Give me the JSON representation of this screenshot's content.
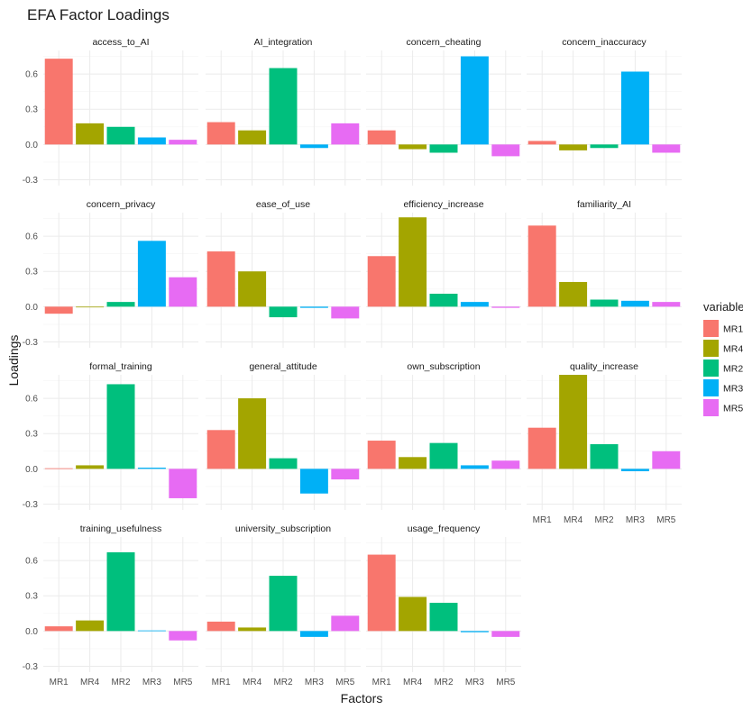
{
  "chart_data": {
    "type": "bar",
    "title": "EFA Factor Loadings",
    "xlabel": "Factors",
    "ylabel": "Loadings",
    "factors": [
      "MR1",
      "MR4",
      "MR2",
      "MR3",
      "MR5"
    ],
    "colors": {
      "MR1": "#F8766D",
      "MR4": "#A3A500",
      "MR2": "#00BF7D",
      "MR3": "#00B0F6",
      "MR5": "#E76BF3"
    },
    "ylim": [
      -0.3,
      0.75
    ],
    "yticks": [
      "0.6",
      "0.3",
      "0.0",
      "-0.3"
    ],
    "ytick_values": [
      0.6,
      0.3,
      0.0,
      -0.3
    ],
    "grid": true,
    "legend": {
      "title": "variable",
      "position": "right",
      "items": [
        "MR1",
        "MR4",
        "MR2",
        "MR3",
        "MR5"
      ]
    },
    "panels": [
      {
        "name": "access_to_AI",
        "values": [
          0.73,
          0.18,
          0.15,
          0.06,
          0.04
        ]
      },
      {
        "name": "AI_integration",
        "values": [
          0.19,
          0.12,
          0.65,
          -0.03,
          0.18
        ]
      },
      {
        "name": "concern_cheating",
        "values": [
          0.12,
          -0.04,
          -0.07,
          0.75,
          -0.1
        ]
      },
      {
        "name": "concern_inaccuracy",
        "values": [
          0.03,
          -0.05,
          -0.03,
          0.62,
          -0.07
        ]
      },
      {
        "name": "concern_privacy",
        "values": [
          -0.06,
          0.0,
          0.04,
          0.56,
          0.25
        ]
      },
      {
        "name": "ease_of_use",
        "values": [
          0.47,
          0.3,
          -0.09,
          -0.01,
          -0.1
        ]
      },
      {
        "name": "efficiency_increase",
        "values": [
          0.43,
          0.76,
          0.11,
          0.04,
          -0.01
        ]
      },
      {
        "name": "familiarity_AI",
        "values": [
          0.69,
          0.21,
          0.06,
          0.05,
          0.04
        ]
      },
      {
        "name": "formal_training",
        "values": [
          0.005,
          0.03,
          0.72,
          0.01,
          -0.25
        ]
      },
      {
        "name": "general_attitude",
        "values": [
          0.33,
          0.6,
          0.09,
          -0.21,
          -0.09
        ]
      },
      {
        "name": "own_subscription",
        "values": [
          0.24,
          0.1,
          0.22,
          0.03,
          0.07
        ]
      },
      {
        "name": "quality_increase",
        "values": [
          0.35,
          0.8,
          0.21,
          -0.02,
          0.15
        ]
      },
      {
        "name": "training_usefulness",
        "values": [
          0.04,
          0.09,
          0.67,
          0.005,
          -0.08
        ]
      },
      {
        "name": "university_subscription",
        "values": [
          0.08,
          0.03,
          0.47,
          -0.05,
          0.13
        ]
      },
      {
        "name": "usage_frequency",
        "values": [
          0.65,
          0.29,
          0.24,
          -0.01,
          -0.05
        ]
      }
    ]
  }
}
